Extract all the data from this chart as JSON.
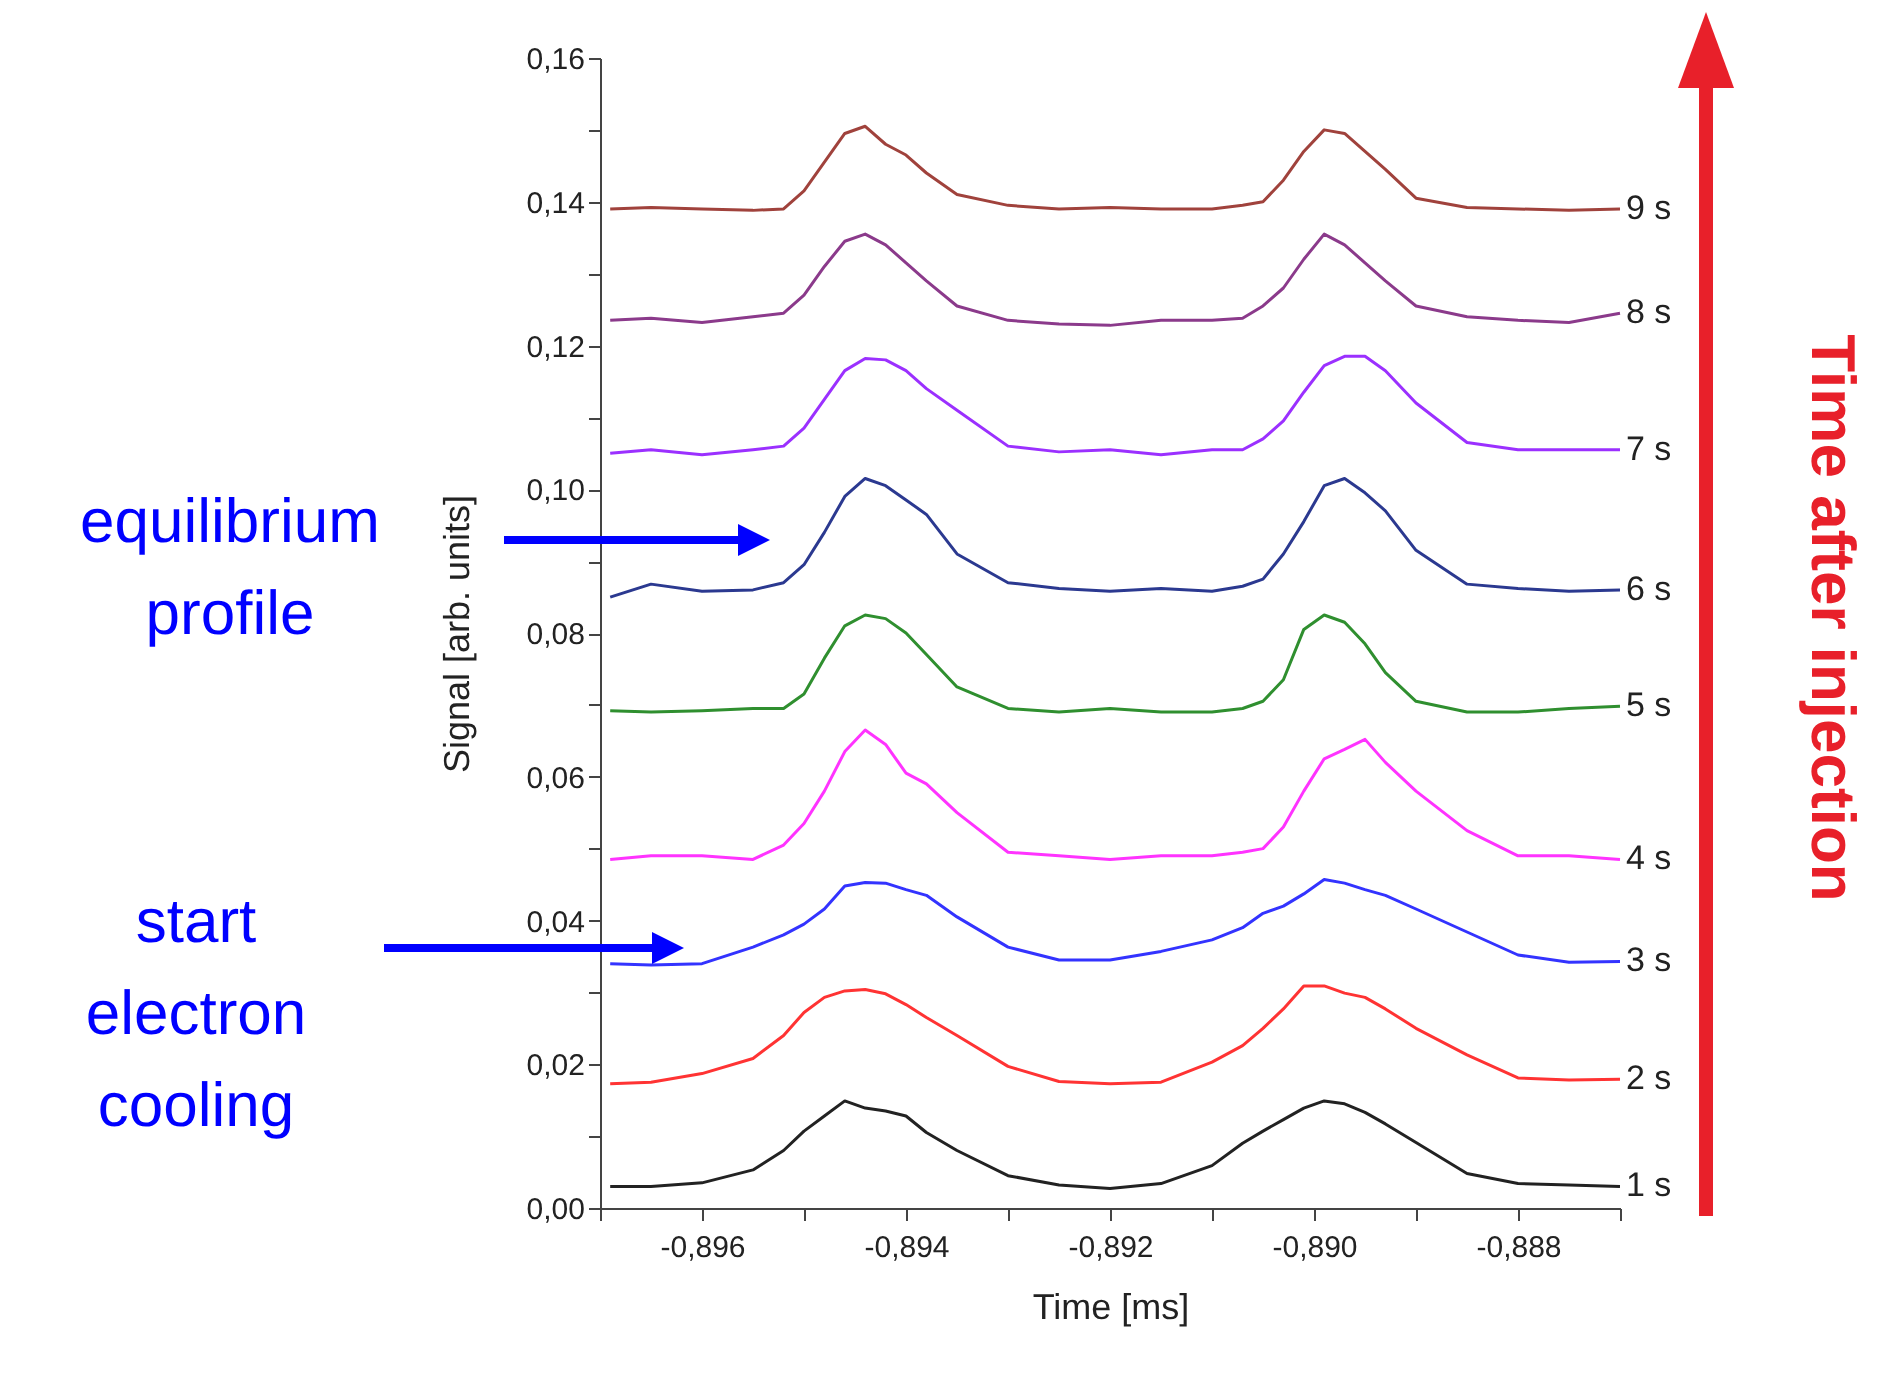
{
  "chart_data": {
    "type": "line",
    "xlabel": "Time [ms]",
    "ylabel": "Signal [arb. units]",
    "x": [
      -0.8969,
      -0.8965,
      -0.896,
      -0.8955,
      -0.8952,
      -0.895,
      -0.8948,
      -0.8946,
      -0.8944,
      -0.8942,
      -0.894,
      -0.8938,
      -0.8935,
      -0.893,
      -0.8925,
      -0.892,
      -0.8915,
      -0.891,
      -0.8907,
      -0.8905,
      -0.8903,
      -0.8901,
      -0.8899,
      -0.8897,
      -0.8895,
      -0.8893,
      -0.889,
      -0.8885,
      -0.888,
      -0.8875,
      -0.887
    ],
    "series": [
      {
        "name": "1 s",
        "color": "#222222",
        "values": [
          0.003,
          0.003,
          0.0035,
          0.0053,
          0.008,
          0.0107,
          0.0128,
          0.0149,
          0.0139,
          0.0135,
          0.0128,
          0.0105,
          0.008,
          0.0045,
          0.0032,
          0.0027,
          0.0034,
          0.0059,
          0.009,
          0.0107,
          0.0123,
          0.0139,
          0.0149,
          0.0145,
          0.0133,
          0.0117,
          0.0091,
          0.0048,
          0.0034,
          0.0032,
          0.003
        ]
      },
      {
        "name": "2 s",
        "color": "#ff3333",
        "values": [
          0.0173,
          0.0175,
          0.0187,
          0.0208,
          0.024,
          0.0272,
          0.0293,
          0.0302,
          0.0304,
          0.0298,
          0.0283,
          0.0265,
          0.024,
          0.0197,
          0.0176,
          0.0173,
          0.0175,
          0.0203,
          0.0226,
          0.025,
          0.0277,
          0.0309,
          0.0309,
          0.0299,
          0.0293,
          0.0277,
          0.025,
          0.0213,
          0.0181,
          0.0178,
          0.0179
        ]
      },
      {
        "name": "3 s",
        "color": "#3333ff",
        "values": [
          0.034,
          0.0338,
          0.034,
          0.0363,
          0.038,
          0.0395,
          0.0416,
          0.0448,
          0.0453,
          0.0452,
          0.0443,
          0.0435,
          0.0405,
          0.0363,
          0.0345,
          0.0345,
          0.0357,
          0.0373,
          0.039,
          0.041,
          0.042,
          0.0437,
          0.0457,
          0.0452,
          0.0443,
          0.0435,
          0.0416,
          0.0384,
          0.0352,
          0.0342,
          0.0343
        ]
      },
      {
        "name": "4 s",
        "color": "#ff33ff",
        "values": [
          0.0485,
          0.049,
          0.049,
          0.0485,
          0.0505,
          0.0535,
          0.058,
          0.0635,
          0.0665,
          0.0645,
          0.0605,
          0.059,
          0.055,
          0.0495,
          0.049,
          0.0485,
          0.049,
          0.049,
          0.0495,
          0.05,
          0.053,
          0.058,
          0.0625,
          0.0638,
          0.0652,
          0.062,
          0.058,
          0.0525,
          0.049,
          0.049,
          0.0485
        ]
      },
      {
        "name": "5 s",
        "color": "#2f8f2f",
        "values": [
          0.0692,
          0.069,
          0.0692,
          0.0695,
          0.0695,
          0.0715,
          0.0765,
          0.081,
          0.0825,
          0.082,
          0.08,
          0.077,
          0.0725,
          0.0695,
          0.069,
          0.0695,
          0.069,
          0.069,
          0.0695,
          0.0705,
          0.0735,
          0.0805,
          0.0825,
          0.0815,
          0.0785,
          0.0745,
          0.0705,
          0.069,
          0.069,
          0.0695,
          0.0698
        ]
      },
      {
        "name": "6 s",
        "color": "#2b3990",
        "values": [
          0.085,
          0.0868,
          0.0858,
          0.086,
          0.087,
          0.0895,
          0.094,
          0.099,
          0.1015,
          0.1005,
          0.0985,
          0.0965,
          0.091,
          0.087,
          0.0862,
          0.0858,
          0.0862,
          0.0858,
          0.0865,
          0.0875,
          0.091,
          0.0955,
          0.1005,
          0.1015,
          0.0995,
          0.097,
          0.0915,
          0.0868,
          0.0862,
          0.0858,
          0.086
        ]
      },
      {
        "name": "7 s",
        "color": "#9b30ff",
        "values": [
          0.105,
          0.1055,
          0.1048,
          0.1055,
          0.106,
          0.1085,
          0.1125,
          0.1165,
          0.1182,
          0.118,
          0.1165,
          0.114,
          0.111,
          0.106,
          0.1052,
          0.1055,
          0.1048,
          0.1055,
          0.1055,
          0.107,
          0.1095,
          0.1135,
          0.1172,
          0.1185,
          0.1185,
          0.1165,
          0.112,
          0.1065,
          0.1055,
          0.1055,
          0.1055
        ]
      },
      {
        "name": "8 s",
        "color": "#8b3a8b",
        "values": [
          0.1235,
          0.1238,
          0.1232,
          0.124,
          0.1245,
          0.127,
          0.131,
          0.1345,
          0.1355,
          0.134,
          0.1315,
          0.129,
          0.1255,
          0.1235,
          0.123,
          0.1228,
          0.1235,
          0.1235,
          0.1238,
          0.1255,
          0.128,
          0.132,
          0.1355,
          0.134,
          0.1315,
          0.129,
          0.1255,
          0.124,
          0.1235,
          0.1232,
          0.1245
        ]
      },
      {
        "name": "9 s",
        "color": "#a0423c",
        "values": [
          0.139,
          0.1392,
          0.139,
          0.1388,
          0.139,
          0.1415,
          0.1455,
          0.1495,
          0.1505,
          0.148,
          0.1465,
          0.144,
          0.141,
          0.1395,
          0.139,
          0.1392,
          0.139,
          0.139,
          0.1395,
          0.14,
          0.143,
          0.147,
          0.15,
          0.1495,
          0.147,
          0.1445,
          0.1405,
          0.1392,
          0.139,
          0.1388,
          0.139
        ]
      }
    ],
    "xlim": [
      -0.897,
      -0.887
    ],
    "xticks": [
      {
        "value": -0.897,
        "label": null
      },
      {
        "value": -0.896,
        "label": "-0,896"
      },
      {
        "value": -0.895,
        "label": null
      },
      {
        "value": -0.894,
        "label": "-0,894"
      },
      {
        "value": -0.893,
        "label": null
      },
      {
        "value": -0.892,
        "label": "-0,892"
      },
      {
        "value": -0.891,
        "label": null
      },
      {
        "value": -0.89,
        "label": "-0,890"
      },
      {
        "value": -0.889,
        "label": null
      },
      {
        "value": -0.888,
        "label": "-0,888"
      },
      {
        "value": -0.887,
        "label": null
      }
    ],
    "ylim": [
      0,
      0.16
    ],
    "yticks": [
      {
        "value": 0,
        "label": "0,00"
      },
      {
        "value": 0.01,
        "label": null
      },
      {
        "value": 0.02,
        "label": "0,02"
      },
      {
        "value": 0.03,
        "label": null
      },
      {
        "value": 0.04,
        "label": "0,04"
      },
      {
        "value": 0.05,
        "label": null
      },
      {
        "value": 0.06,
        "label": "0,06"
      },
      {
        "value": 0.07,
        "label": null
      },
      {
        "value": 0.08,
        "label": "0,08"
      },
      {
        "value": 0.09,
        "label": null
      },
      {
        "value": 0.1,
        "label": "0,10"
      },
      {
        "value": 0.11,
        "label": null
      },
      {
        "value": 0.12,
        "label": "0,12"
      },
      {
        "value": 0.13,
        "label": null
      },
      {
        "value": 0.14,
        "label": "0,14"
      },
      {
        "value": 0.15,
        "label": null
      },
      {
        "value": 0.16,
        "label": "0,16"
      }
    ],
    "grid": false,
    "legend": false,
    "marker": "none",
    "line_style": "solid",
    "annotations": [
      "equilibrium profile",
      "start electron cooling",
      "Time after injection"
    ]
  }
}
